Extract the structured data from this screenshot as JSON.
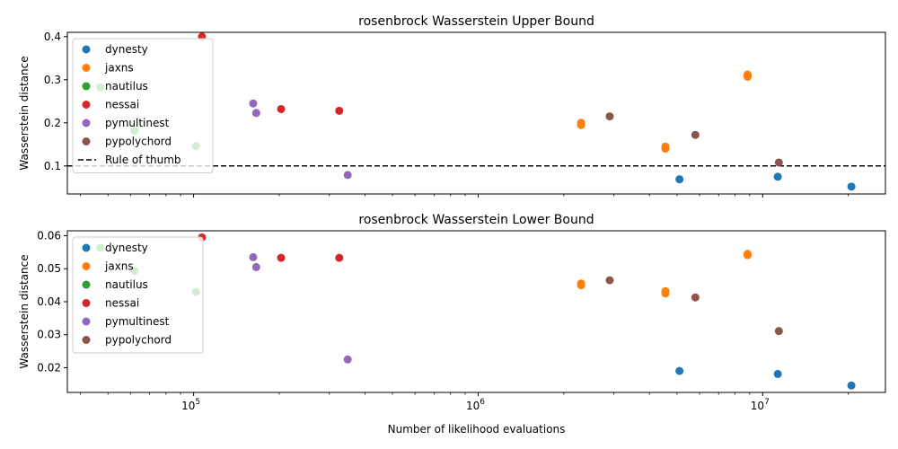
{
  "chart_data": [
    {
      "type": "scatter",
      "title": "rosenbrock Wasserstein Upper Bound",
      "xlabel": "",
      "ylabel": "Wasserstein distance",
      "xscale": "log",
      "xlim": [
        36000,
        27000000
      ],
      "ylim": [
        0.035,
        0.41
      ],
      "yticks": [
        0.1,
        0.2,
        0.3,
        0.4
      ],
      "ytick_labels": [
        "0.1",
        "0.2",
        "0.3",
        "0.4"
      ],
      "xticks": [],
      "xtick_labels": [],
      "hline": {
        "y": 0.1,
        "style": "dashed",
        "color": "#000000",
        "label": "Rule of thumb"
      },
      "legend_position": "upper left",
      "series": [
        {
          "name": "dynesty",
          "color": "#1f77b4",
          "points": [
            [
              5100000,
              0.069
            ],
            [
              11300000,
              0.075
            ],
            [
              20500000,
              0.052
            ]
          ]
        },
        {
          "name": "jaxns",
          "color": "#ff7f0e",
          "points": [
            [
              2300000,
              0.2
            ],
            [
              2300000,
              0.195
            ],
            [
              4550000,
              0.145
            ],
            [
              4550000,
              0.14
            ],
            [
              8850000,
              0.312
            ],
            [
              8850000,
              0.307
            ]
          ]
        },
        {
          "name": "nautilus",
          "color": "#2ca02c",
          "points": [
            [
              47000,
              0.283
            ],
            [
              62000,
              0.182
            ],
            [
              102000,
              0.146
            ]
          ]
        },
        {
          "name": "nessai",
          "color": "#d62728",
          "points": [
            [
              107000,
              0.4
            ],
            [
              203000,
              0.232
            ],
            [
              325000,
              0.228
            ]
          ]
        },
        {
          "name": "pymultinest",
          "color": "#9467bd",
          "points": [
            [
              162000,
              0.245
            ],
            [
              166000,
              0.223
            ],
            [
              348000,
              0.079
            ]
          ]
        },
        {
          "name": "pypolychord",
          "color": "#8c564b",
          "points": [
            [
              2900000,
              0.215
            ],
            [
              5800000,
              0.172
            ],
            [
              11400000,
              0.108
            ]
          ]
        }
      ]
    },
    {
      "type": "scatter",
      "title": "rosenbrock Wasserstein Lower Bound",
      "xlabel": "Number of likelihood evaluations",
      "ylabel": "Wasserstein distance",
      "xscale": "log",
      "xlim": [
        36000,
        27000000
      ],
      "ylim": [
        0.0125,
        0.0615
      ],
      "yticks": [
        0.02,
        0.03,
        0.04,
        0.05,
        0.06
      ],
      "ytick_labels": [
        "0.02",
        "0.03",
        "0.04",
        "0.05",
        "0.06"
      ],
      "xticks": [
        100000,
        1000000,
        10000000
      ],
      "xtick_labels": [
        [
          "10",
          "5"
        ],
        [
          "10",
          "6"
        ],
        [
          "10",
          "7"
        ]
      ],
      "legend_position": "upper left",
      "series": [
        {
          "name": "dynesty",
          "color": "#1f77b4",
          "points": [
            [
              5100000,
              0.019
            ],
            [
              11300000,
              0.0181
            ],
            [
              20500000,
              0.0146
            ]
          ]
        },
        {
          "name": "jaxns",
          "color": "#ff7f0e",
          "points": [
            [
              2300000,
              0.0455
            ],
            [
              2300000,
              0.045
            ],
            [
              4550000,
              0.0432
            ],
            [
              4550000,
              0.0425
            ],
            [
              8850000,
              0.0545
            ],
            [
              8850000,
              0.0541
            ]
          ]
        },
        {
          "name": "nautilus",
          "color": "#2ca02c",
          "points": [
            [
              47000,
              0.0563
            ],
            [
              62000,
              0.0493
            ],
            [
              102000,
              0.043
            ]
          ]
        },
        {
          "name": "nessai",
          "color": "#d62728",
          "points": [
            [
              107000,
              0.0595
            ],
            [
              203000,
              0.0533
            ],
            [
              325000,
              0.0533
            ]
          ]
        },
        {
          "name": "pymultinest",
          "color": "#9467bd",
          "points": [
            [
              162000,
              0.0535
            ],
            [
              166000,
              0.0505
            ],
            [
              348000,
              0.0225
            ]
          ]
        },
        {
          "name": "pypolychord",
          "color": "#8c564b",
          "points": [
            [
              2900000,
              0.0465
            ],
            [
              5800000,
              0.0413
            ],
            [
              11400000,
              0.0311
            ]
          ]
        }
      ]
    }
  ]
}
